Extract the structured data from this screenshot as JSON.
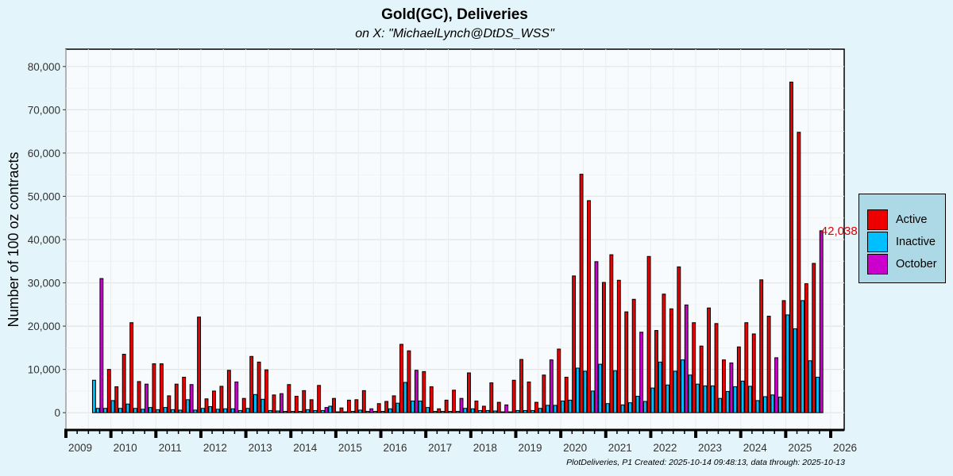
{
  "chart_data": {
    "type": "bar",
    "title": "Gold(GC), Deliveries",
    "subtitle": "on X:   \"MichaelLynch@DtDS_WSS\"",
    "caption": "PlotDeliveries, P1 Created: 2025-10-14 09:48:13, data through: 2025-10-13",
    "xlabel": "",
    "ylabel": "Number of 100 oz contracts",
    "xlim": [
      2009.0,
      2026.3
    ],
    "ylim": [
      -4000,
      84000
    ],
    "yticks": [
      0,
      10000,
      20000,
      30000,
      40000,
      50000,
      60000,
      70000,
      80000
    ],
    "ytick_labels": [
      "0",
      "10,000",
      "20,000",
      "30,000",
      "40,000",
      "50,000",
      "60,000",
      "70,000",
      "80,000"
    ],
    "xticks": [
      2009,
      2010,
      2011,
      2012,
      2013,
      2014,
      2015,
      2016,
      2017,
      2018,
      2019,
      2020,
      2021,
      2022,
      2023,
      2024,
      2025,
      2026
    ],
    "xtick_labels": [
      "2009",
      "2010",
      "2011",
      "2012",
      "2013",
      "2014",
      "2015",
      "2016",
      "2017",
      "2018",
      "2019",
      "2020",
      "2021",
      "2022",
      "2023",
      "2024",
      "2025",
      "2026"
    ],
    "grid": true,
    "legend_position": "right",
    "legend": [
      {
        "name": "Active",
        "color": "#ee0000"
      },
      {
        "name": "Inactive",
        "color": "#00bfff"
      },
      {
        "name": "October",
        "color": "#cc00cc"
      }
    ],
    "annotation": {
      "text": "42,038",
      "color": "#e00000",
      "x": 2025.75,
      "y": 42038
    },
    "months": [
      [
        "2009-08",
        7500,
        "i"
      ],
      [
        "2009-09",
        1000,
        "i"
      ],
      [
        "2009-10",
        31000,
        "o"
      ],
      [
        "2009-11",
        1000,
        "i"
      ],
      [
        "2009-12",
        10000,
        "a"
      ],
      [
        "2010-01",
        2800,
        "i"
      ],
      [
        "2010-02",
        6000,
        "a"
      ],
      [
        "2010-03",
        1000,
        "i"
      ],
      [
        "2010-04",
        13500,
        "a"
      ],
      [
        "2010-05",
        2000,
        "i"
      ],
      [
        "2010-06",
        20800,
        "a"
      ],
      [
        "2010-07",
        1000,
        "i"
      ],
      [
        "2010-08",
        7200,
        "a"
      ],
      [
        "2010-09",
        800,
        "i"
      ],
      [
        "2010-10",
        6600,
        "o"
      ],
      [
        "2010-11",
        1200,
        "i"
      ],
      [
        "2010-12",
        11300,
        "a"
      ],
      [
        "2011-01",
        700,
        "i"
      ],
      [
        "2011-02",
        11300,
        "a"
      ],
      [
        "2011-03",
        1200,
        "i"
      ],
      [
        "2011-04",
        3900,
        "a"
      ],
      [
        "2011-05",
        700,
        "i"
      ],
      [
        "2011-06",
        6600,
        "a"
      ],
      [
        "2011-07",
        600,
        "i"
      ],
      [
        "2011-08",
        8200,
        "a"
      ],
      [
        "2011-09",
        3000,
        "i"
      ],
      [
        "2011-10",
        6500,
        "o"
      ],
      [
        "2011-11",
        600,
        "i"
      ],
      [
        "2011-12",
        22100,
        "a"
      ],
      [
        "2012-01",
        1000,
        "i"
      ],
      [
        "2012-02",
        3200,
        "a"
      ],
      [
        "2012-03",
        1400,
        "i"
      ],
      [
        "2012-04",
        5000,
        "a"
      ],
      [
        "2012-05",
        800,
        "i"
      ],
      [
        "2012-06",
        6100,
        "a"
      ],
      [
        "2012-07",
        900,
        "i"
      ],
      [
        "2012-08",
        9800,
        "a"
      ],
      [
        "2012-09",
        900,
        "i"
      ],
      [
        "2012-10",
        7100,
        "o"
      ],
      [
        "2012-11",
        500,
        "i"
      ],
      [
        "2012-12",
        3300,
        "a"
      ],
      [
        "2013-01",
        1000,
        "i"
      ],
      [
        "2013-02",
        13000,
        "a"
      ],
      [
        "2013-03",
        4200,
        "i"
      ],
      [
        "2013-04",
        11700,
        "a"
      ],
      [
        "2013-05",
        3100,
        "i"
      ],
      [
        "2013-06",
        9900,
        "a"
      ],
      [
        "2013-07",
        500,
        "i"
      ],
      [
        "2013-08",
        4100,
        "a"
      ],
      [
        "2013-09",
        400,
        "i"
      ],
      [
        "2013-10",
        4400,
        "o"
      ],
      [
        "2013-11",
        300,
        "i"
      ],
      [
        "2013-12",
        6500,
        "a"
      ],
      [
        "2014-01",
        300,
        "i"
      ],
      [
        "2014-02",
        3800,
        "a"
      ],
      [
        "2014-03",
        300,
        "i"
      ],
      [
        "2014-04",
        5100,
        "a"
      ],
      [
        "2014-05",
        700,
        "i"
      ],
      [
        "2014-06",
        3000,
        "a"
      ],
      [
        "2014-07",
        500,
        "i"
      ],
      [
        "2014-08",
        6300,
        "a"
      ],
      [
        "2014-09",
        500,
        "i"
      ],
      [
        "2014-10",
        1200,
        "o"
      ],
      [
        "2014-11",
        1500,
        "i"
      ],
      [
        "2014-12",
        3300,
        "a"
      ],
      [
        "2015-01",
        200,
        "i"
      ],
      [
        "2015-02",
        1100,
        "a"
      ],
      [
        "2015-03",
        200,
        "i"
      ],
      [
        "2015-04",
        2900,
        "a"
      ],
      [
        "2015-05",
        300,
        "i"
      ],
      [
        "2015-06",
        3000,
        "a"
      ],
      [
        "2015-07",
        600,
        "i"
      ],
      [
        "2015-08",
        5100,
        "a"
      ],
      [
        "2015-09",
        300,
        "i"
      ],
      [
        "2015-10",
        900,
        "o"
      ],
      [
        "2015-11",
        300,
        "i"
      ],
      [
        "2015-12",
        2100,
        "a"
      ],
      [
        "2016-01",
        300,
        "i"
      ],
      [
        "2016-02",
        2600,
        "a"
      ],
      [
        "2016-03",
        900,
        "i"
      ],
      [
        "2016-04",
        3900,
        "a"
      ],
      [
        "2016-05",
        2200,
        "i"
      ],
      [
        "2016-06",
        15800,
        "a"
      ],
      [
        "2016-07",
        7000,
        "i"
      ],
      [
        "2016-08",
        14300,
        "a"
      ],
      [
        "2016-09",
        2700,
        "i"
      ],
      [
        "2016-10",
        9800,
        "o"
      ],
      [
        "2016-11",
        2700,
        "i"
      ],
      [
        "2016-12",
        9500,
        "a"
      ],
      [
        "2017-01",
        1200,
        "i"
      ],
      [
        "2017-02",
        6000,
        "a"
      ],
      [
        "2017-03",
        300,
        "i"
      ],
      [
        "2017-04",
        900,
        "a"
      ],
      [
        "2017-05",
        300,
        "i"
      ],
      [
        "2017-06",
        2900,
        "a"
      ],
      [
        "2017-07",
        300,
        "i"
      ],
      [
        "2017-08",
        5200,
        "a"
      ],
      [
        "2017-09",
        300,
        "i"
      ],
      [
        "2017-10",
        3300,
        "o"
      ],
      [
        "2017-11",
        1000,
        "i"
      ],
      [
        "2017-12",
        9200,
        "a"
      ],
      [
        "2018-01",
        900,
        "i"
      ],
      [
        "2018-02",
        2700,
        "a"
      ],
      [
        "2018-03",
        500,
        "i"
      ],
      [
        "2018-04",
        1500,
        "a"
      ],
      [
        "2018-05",
        500,
        "i"
      ],
      [
        "2018-06",
        6900,
        "a"
      ],
      [
        "2018-07",
        400,
        "i"
      ],
      [
        "2018-08",
        2400,
        "a"
      ],
      [
        "2018-09",
        200,
        "i"
      ],
      [
        "2018-10",
        1800,
        "o"
      ],
      [
        "2018-11",
        200,
        "i"
      ],
      [
        "2018-12",
        7500,
        "a"
      ],
      [
        "2019-01",
        500,
        "i"
      ],
      [
        "2019-02",
        12300,
        "a"
      ],
      [
        "2019-03",
        500,
        "i"
      ],
      [
        "2019-04",
        7100,
        "a"
      ],
      [
        "2019-05",
        500,
        "i"
      ],
      [
        "2019-06",
        2400,
        "a"
      ],
      [
        "2019-07",
        1000,
        "i"
      ],
      [
        "2019-08",
        8700,
        "a"
      ],
      [
        "2019-09",
        1700,
        "i"
      ],
      [
        "2019-10",
        12200,
        "o"
      ],
      [
        "2019-11",
        1700,
        "i"
      ],
      [
        "2019-12",
        14700,
        "a"
      ],
      [
        "2020-01",
        2700,
        "i"
      ],
      [
        "2020-02",
        8200,
        "a"
      ],
      [
        "2020-03",
        2900,
        "i"
      ],
      [
        "2020-04",
        31600,
        "a"
      ],
      [
        "2020-05",
        10300,
        "i"
      ],
      [
        "2020-06",
        55100,
        "a"
      ],
      [
        "2020-07",
        9600,
        "i"
      ],
      [
        "2020-08",
        49000,
        "a"
      ],
      [
        "2020-09",
        5000,
        "i"
      ],
      [
        "2020-10",
        34900,
        "o"
      ],
      [
        "2020-11",
        11200,
        "i"
      ],
      [
        "2020-12",
        30100,
        "a"
      ],
      [
        "2021-01",
        2100,
        "i"
      ],
      [
        "2021-02",
        36500,
        "a"
      ],
      [
        "2021-03",
        9700,
        "i"
      ],
      [
        "2021-04",
        30600,
        "a"
      ],
      [
        "2021-05",
        1800,
        "i"
      ],
      [
        "2021-06",
        23300,
        "a"
      ],
      [
        "2021-07",
        2300,
        "i"
      ],
      [
        "2021-08",
        26200,
        "a"
      ],
      [
        "2021-09",
        3800,
        "i"
      ],
      [
        "2021-10",
        18600,
        "o"
      ],
      [
        "2021-11",
        2600,
        "i"
      ],
      [
        "2021-12",
        36100,
        "a"
      ],
      [
        "2022-01",
        5700,
        "i"
      ],
      [
        "2022-02",
        19000,
        "a"
      ],
      [
        "2022-03",
        11700,
        "i"
      ],
      [
        "2022-04",
        27400,
        "a"
      ],
      [
        "2022-05",
        6400,
        "i"
      ],
      [
        "2022-06",
        24000,
        "a"
      ],
      [
        "2022-07",
        9600,
        "i"
      ],
      [
        "2022-08",
        33700,
        "a"
      ],
      [
        "2022-09",
        12200,
        "i"
      ],
      [
        "2022-10",
        24900,
        "o"
      ],
      [
        "2022-11",
        8700,
        "i"
      ],
      [
        "2022-12",
        20800,
        "a"
      ],
      [
        "2023-01",
        6600,
        "i"
      ],
      [
        "2023-02",
        15400,
        "a"
      ],
      [
        "2023-03",
        6200,
        "i"
      ],
      [
        "2023-04",
        24200,
        "a"
      ],
      [
        "2023-05",
        6200,
        "i"
      ],
      [
        "2023-06",
        20600,
        "a"
      ],
      [
        "2023-07",
        3300,
        "i"
      ],
      [
        "2023-08",
        12200,
        "a"
      ],
      [
        "2023-09",
        4900,
        "i"
      ],
      [
        "2023-10",
        11500,
        "o"
      ],
      [
        "2023-11",
        6000,
        "i"
      ],
      [
        "2023-12",
        15200,
        "a"
      ],
      [
        "2024-01",
        7300,
        "i"
      ],
      [
        "2024-02",
        20800,
        "a"
      ],
      [
        "2024-03",
        6100,
        "i"
      ],
      [
        "2024-04",
        18200,
        "a"
      ],
      [
        "2024-05",
        2800,
        "i"
      ],
      [
        "2024-06",
        30700,
        "a"
      ],
      [
        "2024-07",
        3700,
        "i"
      ],
      [
        "2024-08",
        22300,
        "a"
      ],
      [
        "2024-09",
        4100,
        "i"
      ],
      [
        "2024-10",
        12700,
        "o"
      ],
      [
        "2024-11",
        3600,
        "i"
      ],
      [
        "2024-12",
        25900,
        "a"
      ],
      [
        "2025-01",
        22600,
        "i"
      ],
      [
        "2025-02",
        76400,
        "a"
      ],
      [
        "2025-03",
        19400,
        "i"
      ],
      [
        "2025-04",
        64800,
        "a"
      ],
      [
        "2025-05",
        25900,
        "i"
      ],
      [
        "2025-06",
        29800,
        "a"
      ],
      [
        "2025-07",
        12000,
        "i"
      ],
      [
        "2025-08",
        34500,
        "a"
      ],
      [
        "2025-09",
        8200,
        "i"
      ],
      [
        "2025-10",
        42038,
        "o"
      ]
    ]
  }
}
